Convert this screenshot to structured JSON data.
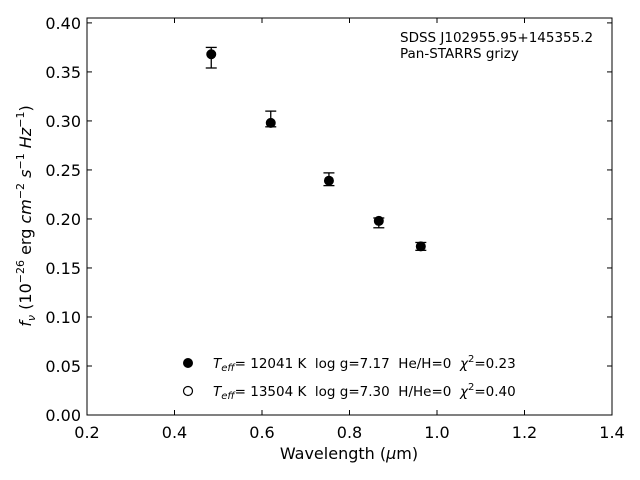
{
  "chart_data": {
    "type": "scatter",
    "xlabel": "Wavelength (μm)",
    "ylabel": "f_ν (10^−26 erg cm^−2 s^−1 Hz^−1)",
    "xlim": [
      0.2,
      1.4
    ],
    "ylim": [
      0.0,
      0.405
    ],
    "x_ticks": [
      "0.2",
      "0.4",
      "0.6",
      "0.8",
      "1.0",
      "1.2",
      "1.4"
    ],
    "y_ticks": [
      "0.00",
      "0.05",
      "0.10",
      "0.15",
      "0.20",
      "0.25",
      "0.30",
      "0.35",
      "0.40"
    ],
    "annotations": [
      "SDSS J102955.95+145355.2",
      "Pan-STARRS grizy"
    ],
    "series": [
      {
        "marker": "filled-circle",
        "points": [
          {
            "x": 0.484,
            "y": 0.368,
            "yerr_low": 0.354,
            "yerr_high": 0.375
          },
          {
            "x": 0.62,
            "y": 0.298,
            "yerr_low": 0.294,
            "yerr_high": 0.31
          },
          {
            "x": 0.753,
            "y": 0.239,
            "yerr_low": 0.234,
            "yerr_high": 0.247
          },
          {
            "x": 0.867,
            "y": 0.198,
            "yerr_low": 0.191,
            "yerr_high": 0.201
          },
          {
            "x": 0.963,
            "y": 0.172,
            "yerr_low": 0.168,
            "yerr_high": 0.176
          }
        ]
      }
    ],
    "legend": {
      "placement": "lower-center",
      "entries": [
        {
          "marker": "filled-circle",
          "parts": {
            "t": "T",
            "sub": "eff",
            "text": "= 12041 K  log g=7.17  He/H=0  ",
            "chi": "χ",
            "sup": "2",
            "val": "=0.23"
          }
        },
        {
          "marker": "open-circle",
          "parts": {
            "t": "T",
            "sub": "eff",
            "text": "= 13504 K  log g=7.30  H/He=0  ",
            "chi": "χ",
            "sup": "2",
            "val": "=0.40"
          }
        }
      ]
    },
    "grid": false
  }
}
